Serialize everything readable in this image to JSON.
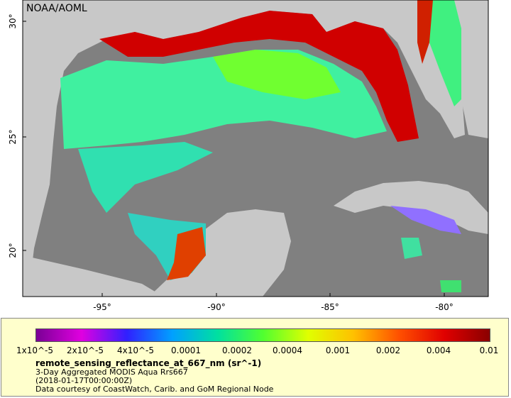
{
  "map": {
    "brand": "NOAA/AOML",
    "lat_labels": [
      {
        "text": "30°"
      },
      {
        "text": "25°"
      },
      {
        "text": "20°"
      }
    ],
    "lon_labels": [
      {
        "text": "-95°"
      },
      {
        "text": "-90°"
      },
      {
        "text": "-85°"
      },
      {
        "text": "-80°"
      }
    ],
    "colors": {
      "water_nodata": "#808080",
      "land": "#c8c8c8",
      "border": "#800080",
      "river": "#6495ed"
    }
  },
  "legend": {
    "ticks": [
      "1x10^-5",
      "2x10^-5",
      "4x10^-5",
      "0.0001",
      "0.0002",
      "0.0004",
      "0.001",
      "0.002",
      "0.004",
      "0.01"
    ],
    "title": "remote_sensing_reflectance_at_667_nm (sr^-1)",
    "subtitle1": "3-Day Aggregated MODIS Aqua Rrs667",
    "subtitle2": "(2018-01-17T00:00:00Z)",
    "credit": "Data courtesy of CoastWatch, Carib. and GoM Regional Node",
    "colormap": [
      "#7a0095",
      "#e000e0",
      "#3020ff",
      "#00a0ff",
      "#00e0a0",
      "#50ff30",
      "#e0ff00",
      "#ffc000",
      "#ff5000",
      "#e00000",
      "#8a0000"
    ]
  }
}
